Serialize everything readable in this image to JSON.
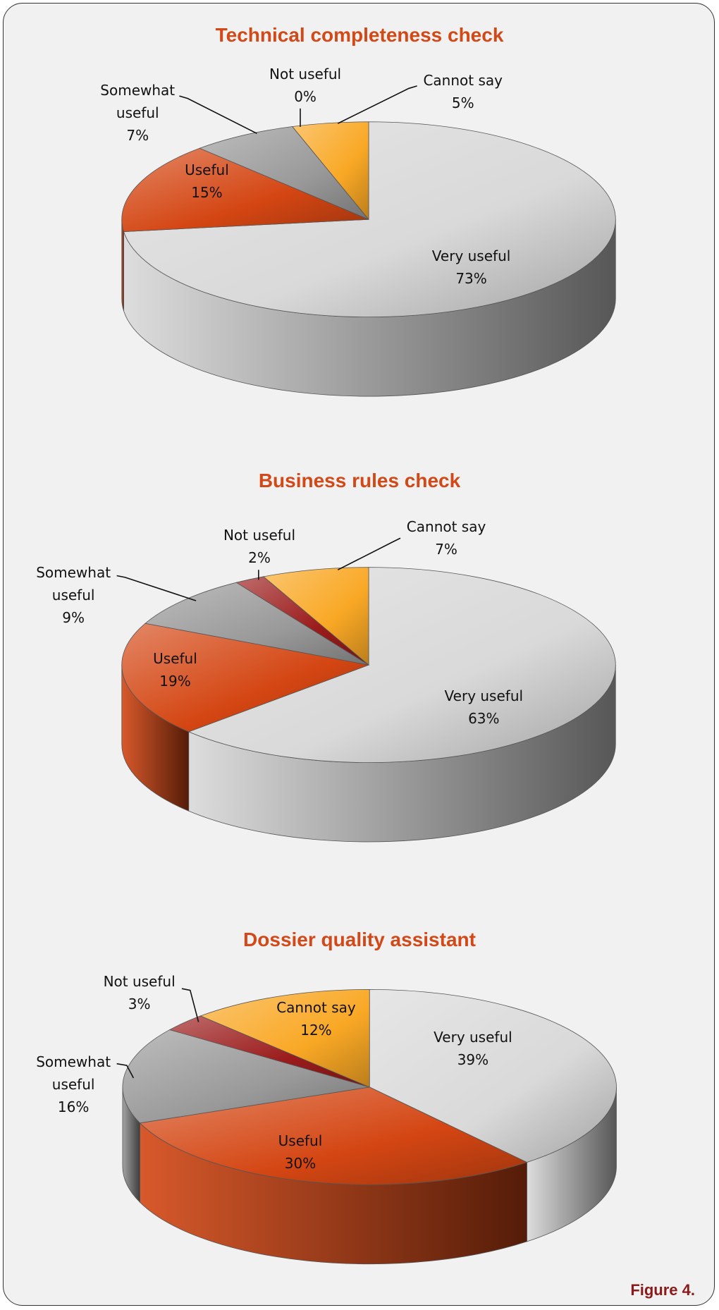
{
  "chart_data": [
    {
      "type": "pie",
      "title": "Technical completeness check",
      "categories": [
        "Very useful",
        "Useful",
        "Somewhat useful",
        "Not useful",
        "Cannot say"
      ],
      "values": [
        73,
        15,
        7,
        0,
        5
      ],
      "value_labels": [
        "73%",
        "15%",
        "7%",
        "0%",
        "5%"
      ],
      "colors": [
        "#d9d9d9",
        "#d44613",
        "#999999",
        "#9b1b1b",
        "#f9a825"
      ]
    },
    {
      "type": "pie",
      "title": "Business rules check",
      "categories": [
        "Very useful",
        "Useful",
        "Somewhat useful",
        "Not useful",
        "Cannot say"
      ],
      "values": [
        63,
        19,
        9,
        2,
        7
      ],
      "value_labels": [
        "63%",
        "19%",
        "9%",
        "2%",
        "7%"
      ],
      "colors": [
        "#d9d9d9",
        "#d44613",
        "#999999",
        "#9b1b1b",
        "#f9a825"
      ]
    },
    {
      "type": "pie",
      "title": "Dossier quality assistant",
      "categories": [
        "Very useful",
        "Useful",
        "Somewhat useful",
        "Not useful",
        "Cannot say"
      ],
      "values": [
        39,
        30,
        16,
        3,
        12
      ],
      "value_labels": [
        "39%",
        "30%",
        "16%",
        "3%",
        "12%"
      ],
      "colors": [
        "#d9d9d9",
        "#d44613",
        "#999999",
        "#9b1b1b",
        "#f9a825"
      ]
    }
  ],
  "caption": "Figure 4."
}
